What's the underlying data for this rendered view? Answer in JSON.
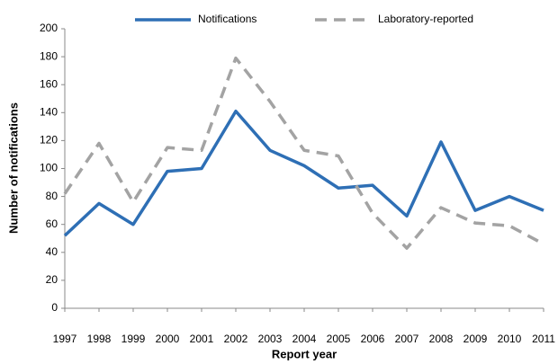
{
  "chart_data": {
    "type": "line",
    "xlabel": "Report year",
    "ylabel": "Number of notifications",
    "categories": [
      "1997",
      "1998",
      "1999",
      "2000",
      "2001",
      "2002",
      "2003",
      "2004",
      "2005",
      "2006",
      "2007",
      "2008",
      "2009",
      "2010",
      "2011"
    ],
    "series": [
      {
        "name": "Notifications",
        "color": "#2e6fb5",
        "dash": false,
        "values": [
          52,
          75,
          60,
          98,
          100,
          141,
          113,
          102,
          86,
          88,
          66,
          119,
          70,
          80,
          70
        ]
      },
      {
        "name": "Laboratory-reported",
        "color": "#a3a3a3",
        "dash": true,
        "values": [
          82,
          118,
          76,
          115,
          113,
          179,
          148,
          113,
          109,
          68,
          43,
          72,
          61,
          59,
          46
        ]
      }
    ],
    "ylim": [
      0,
      200
    ],
    "yticks": [
      0,
      20,
      40,
      60,
      80,
      100,
      120,
      140,
      160,
      180,
      200
    ],
    "grid": false,
    "legend": "top"
  }
}
